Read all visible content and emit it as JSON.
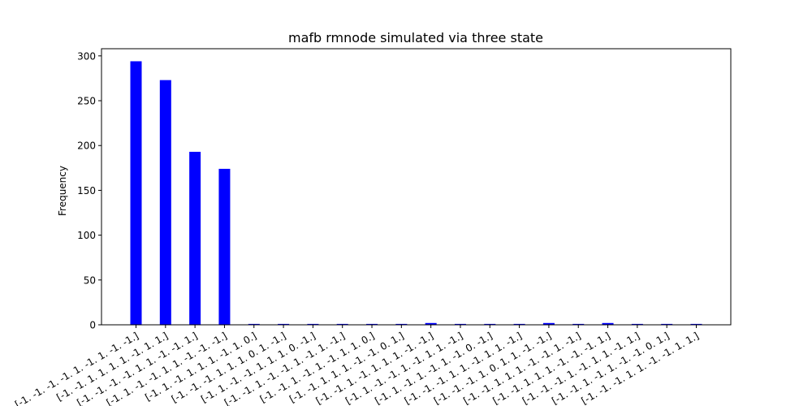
{
  "chart_data": {
    "type": "bar",
    "title": "mafb rmnode simulated via three state",
    "xlabel": "",
    "ylabel": "Frequency",
    "ylim": [
      0,
      308
    ],
    "yticks": [
      0,
      50,
      100,
      150,
      200,
      250,
      300
    ],
    "grid": false,
    "bar_color": "#0000ff",
    "categories": [
      "[-1. -1. -1. -1.  1. -1.  1. -1. -1.]",
      "[-1. -1.  1.  1.  1.  1. -1.  1.  1.]",
      "[-1. -1. -1. -1.  1.  1. -1. -1.  1.]",
      "[-1.  1. -1. -1.  1.  1. -1. -1. -1.]",
      "[-1.  1. -1.  1.  1.  1. -1.  1.  0.]",
      "[-1. -1. -1.  1.  1.  1.  0.  1. -1.]",
      "[-1.  1. -1. -1.  1.  1.  1.  0. -1.]",
      "[-1. -1.  1. -1. -1.  1. -1.  1. -1.]",
      "[-1. -1.  1. -1.  1. -1.  1.  1.  0.]",
      "[-1. -1.  1.  1.  1. -1. -1.  0.  1.]",
      "[-1. -1.  1. -1.  1.  1.  1. -1. -1.]",
      "[-1.  1. -1. -1.  1. -1.  1.  1. -1.]",
      "[-1.  1. -1.  1. -1.  1. -1.  0. -1.]",
      "[-1. -1. -1.  1.  1. -1.  1.  1. -1.]",
      "[-1. -1. -1.  1.  0.  1.  1. -1. -1.]",
      "[-1. -1.  1.  1.  1. -1. -1.  1. -1.]",
      "[-1. -1.  1.  1.  1. -1. -1. -1.  1.]",
      "[-1. -1. -1.  1. -1.  1.  1. -1.  1.]",
      "[-1. -1.  1. -1.  1. -1. -1.  0.  1.]",
      "[-1. -1. -1.  1.  1. -1. -1.  1.  1.]"
    ],
    "values": [
      294,
      273,
      193,
      174,
      1,
      1,
      1,
      1,
      1,
      1,
      2,
      1,
      1,
      1,
      2,
      1,
      2,
      1,
      1,
      1
    ]
  }
}
